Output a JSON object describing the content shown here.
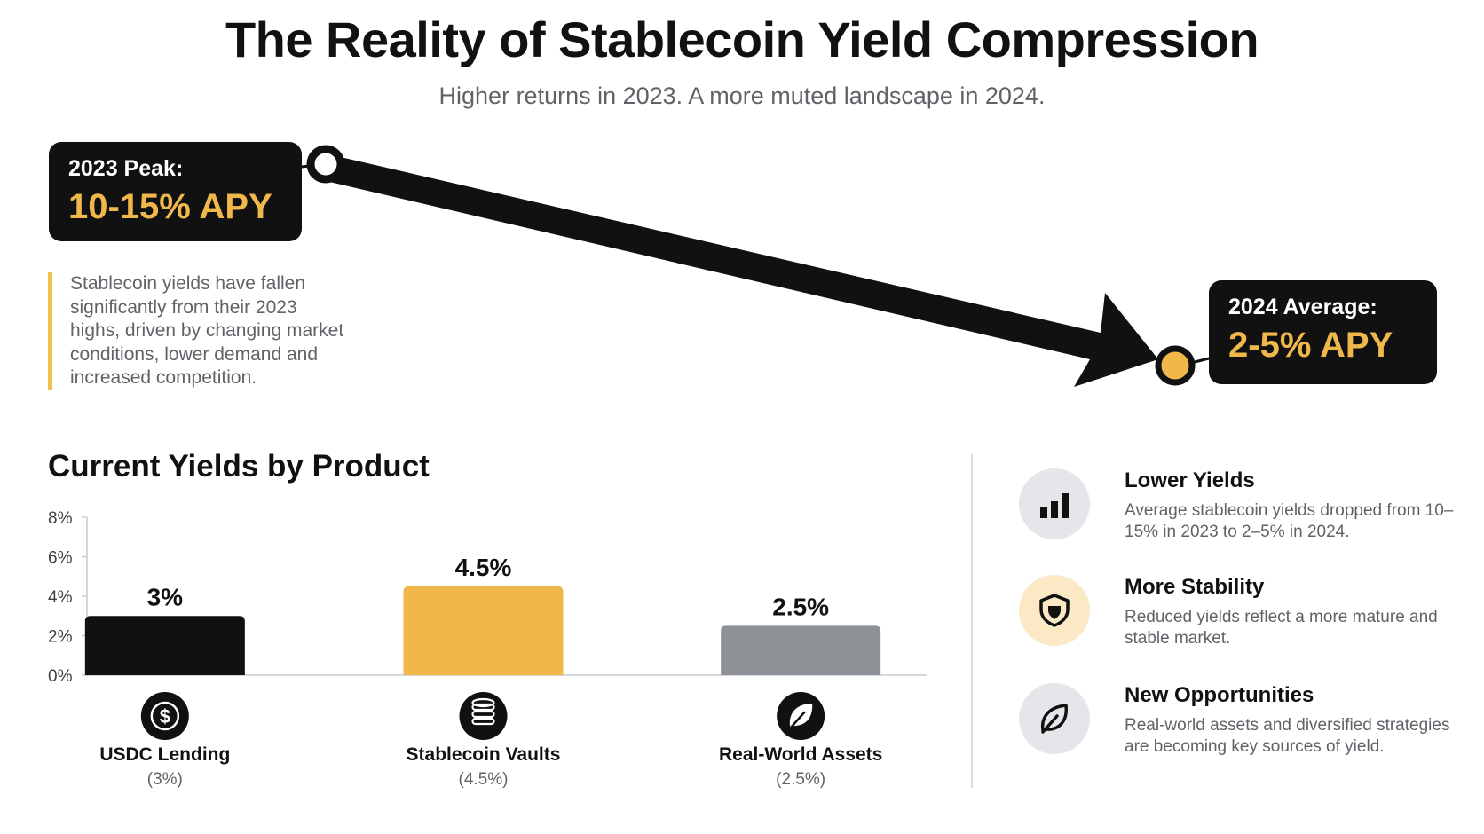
{
  "header": {
    "title": "The Reality of Stablecoin Yield Compression",
    "subtitle": "Higher returns in 2023. A more muted landscape in 2024."
  },
  "hero": {
    "peak_label": "2023 Peak:",
    "peak_value": "10-15% APY",
    "average_label": "2024 Average:",
    "average_value": "2-5% APY",
    "description": "Stablecoin yields have fallen significantly from their 2023 highs, driven by changing market conditions, lower demand and increased competition."
  },
  "colors": {
    "black": "#111111",
    "gold": "#f0b84a",
    "gray": "#8d9297",
    "accent_bar": "#f0c14b",
    "text_gray": "#5f6368"
  },
  "chart_title": "Current Yields by Product",
  "chart_data": {
    "type": "bar",
    "title": "Current Yields by Product",
    "categories": [
      "USDC Lending",
      "Stablecoin Vaults",
      "Real-World Assets"
    ],
    "values": [
      3,
      4.5,
      2.5
    ],
    "value_labels": [
      "3%",
      "4.5%",
      "2.5%"
    ],
    "sublabels": [
      "(3%)",
      "(4.5%)",
      "(2.5%)"
    ],
    "bar_colors": [
      "#111111",
      "#f0b84a",
      "#8d9297"
    ],
    "icons": [
      "dollar-coin-icon",
      "coin-stack-icon",
      "leaf-icon"
    ],
    "yticks": [
      "0%",
      "2%",
      "4%",
      "6%",
      "8%"
    ],
    "ylim": [
      0,
      8
    ],
    "grid": false,
    "xlabel": "",
    "ylabel": ""
  },
  "insights": [
    {
      "icon": "bar-chart-icon",
      "icon_bg": "#e4e6ea",
      "title": "Lower Yields",
      "text": "Average stablecoin yields dropped from 10–15% in 2023 to 2–5% in 2024."
    },
    {
      "icon": "shield-icon",
      "icon_bg": "#fbe9c6",
      "title": "More Stability",
      "text": "Reduced yields reflect a more mature and stable market."
    },
    {
      "icon": "leaf-icon",
      "icon_bg": "#e4e6ea",
      "title": "New Opportunities",
      "text": "Real-world assets and diversified strategies are becoming key sources of yield."
    }
  ]
}
